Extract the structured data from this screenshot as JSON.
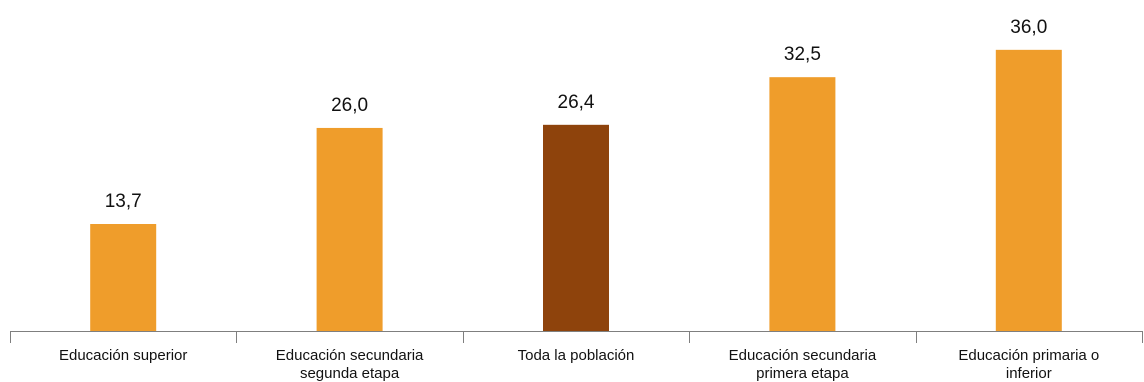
{
  "chart_data": {
    "type": "bar",
    "categories": [
      [
        "Educación superior"
      ],
      [
        "Educación secundaria",
        "segunda etapa"
      ],
      [
        "Toda la población"
      ],
      [
        "Educación secundaria",
        "primera etapa"
      ],
      [
        "Educación primaria o",
        "inferior"
      ]
    ],
    "values": [
      13.7,
      26.0,
      26.4,
      32.5,
      36.0
    ],
    "value_labels": [
      "13,7",
      "26,0",
      "26,4",
      "32,5",
      "36,0"
    ],
    "highlight_index": 2,
    "ylim": [
      0,
      40
    ],
    "grid": false,
    "legend": "none",
    "colors": {
      "bar": "#EF9D2B",
      "highlight": "#8E430C",
      "axis": "#7F7F7F",
      "text": "#111111"
    }
  }
}
